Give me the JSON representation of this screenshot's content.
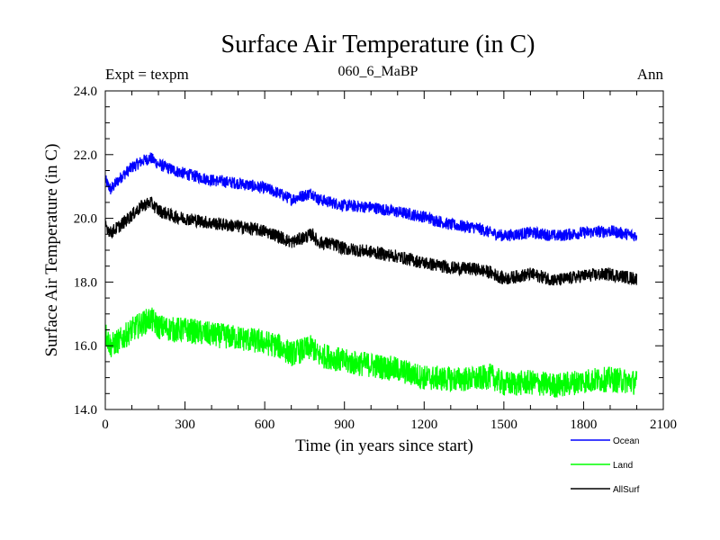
{
  "chart_data": {
    "type": "line",
    "title": "Surface Air Temperature (in C)",
    "subtitle": "060_6_MaBP",
    "left_label": "Expt = texpm",
    "right_label": "Ann",
    "xlabel": "Time (in years since start)",
    "ylabel": "Surface Air Temperature (in C)",
    "xlim": [
      0,
      2100
    ],
    "ylim": [
      14,
      24
    ],
    "xticks": [
      0,
      300,
      600,
      900,
      1200,
      1500,
      1800,
      2100
    ],
    "xtick_labels": [
      "0",
      "300",
      "600",
      "900",
      "1200",
      "1500",
      "1800",
      "2100"
    ],
    "yticks": [
      14,
      16,
      18,
      20,
      22,
      24
    ],
    "ytick_labels": [
      "14.0",
      "16.0",
      "18.0",
      "20.0",
      "22.0",
      "24.0"
    ],
    "legend_position": "bottom-right",
    "series": [
      {
        "name": "Ocean",
        "color": "#0000ff",
        "noise": 0.12,
        "x": [
          0,
          20,
          60,
          100,
          140,
          170,
          200,
          260,
          300,
          400,
          500,
          600,
          650,
          700,
          780,
          800,
          850,
          900,
          1000,
          1100,
          1200,
          1300,
          1400,
          1450,
          1500,
          1600,
          1700,
          1800,
          1900,
          2000
        ],
        "y": [
          21.2,
          20.9,
          21.3,
          21.6,
          21.8,
          21.9,
          21.7,
          21.5,
          21.4,
          21.2,
          21.1,
          20.95,
          20.8,
          20.6,
          20.8,
          20.6,
          20.5,
          20.4,
          20.35,
          20.2,
          20.05,
          19.8,
          19.7,
          19.55,
          19.45,
          19.55,
          19.45,
          19.55,
          19.6,
          19.45
        ]
      },
      {
        "name": "Land",
        "color": "#00ff00",
        "noise": 0.25,
        "x": [
          0,
          20,
          60,
          100,
          140,
          170,
          200,
          260,
          300,
          400,
          500,
          600,
          650,
          700,
          780,
          800,
          850,
          900,
          1000,
          1100,
          1200,
          1300,
          1400,
          1450,
          1500,
          1600,
          1700,
          1800,
          1900,
          2000
        ],
        "y": [
          16.4,
          16.0,
          16.2,
          16.5,
          16.7,
          16.85,
          16.6,
          16.5,
          16.5,
          16.35,
          16.25,
          16.1,
          16.0,
          15.75,
          15.95,
          15.7,
          15.65,
          15.5,
          15.4,
          15.25,
          15.0,
          14.95,
          14.95,
          15.05,
          14.8,
          14.85,
          14.75,
          14.9,
          14.95,
          14.85
        ]
      },
      {
        "name": "AllSurf",
        "color": "#000000",
        "noise": 0.13,
        "x": [
          0,
          20,
          60,
          100,
          140,
          170,
          200,
          260,
          300,
          400,
          500,
          600,
          650,
          700,
          780,
          800,
          850,
          900,
          1000,
          1100,
          1200,
          1300,
          1400,
          1450,
          1500,
          1600,
          1700,
          1800,
          1900,
          2000
        ],
        "y": [
          19.8,
          19.55,
          19.8,
          20.1,
          20.4,
          20.5,
          20.25,
          20.05,
          20.0,
          19.85,
          19.75,
          19.6,
          19.45,
          19.25,
          19.5,
          19.25,
          19.2,
          19.05,
          18.95,
          18.8,
          18.6,
          18.45,
          18.4,
          18.3,
          18.1,
          18.25,
          18.05,
          18.2,
          18.25,
          18.1
        ]
      }
    ]
  }
}
